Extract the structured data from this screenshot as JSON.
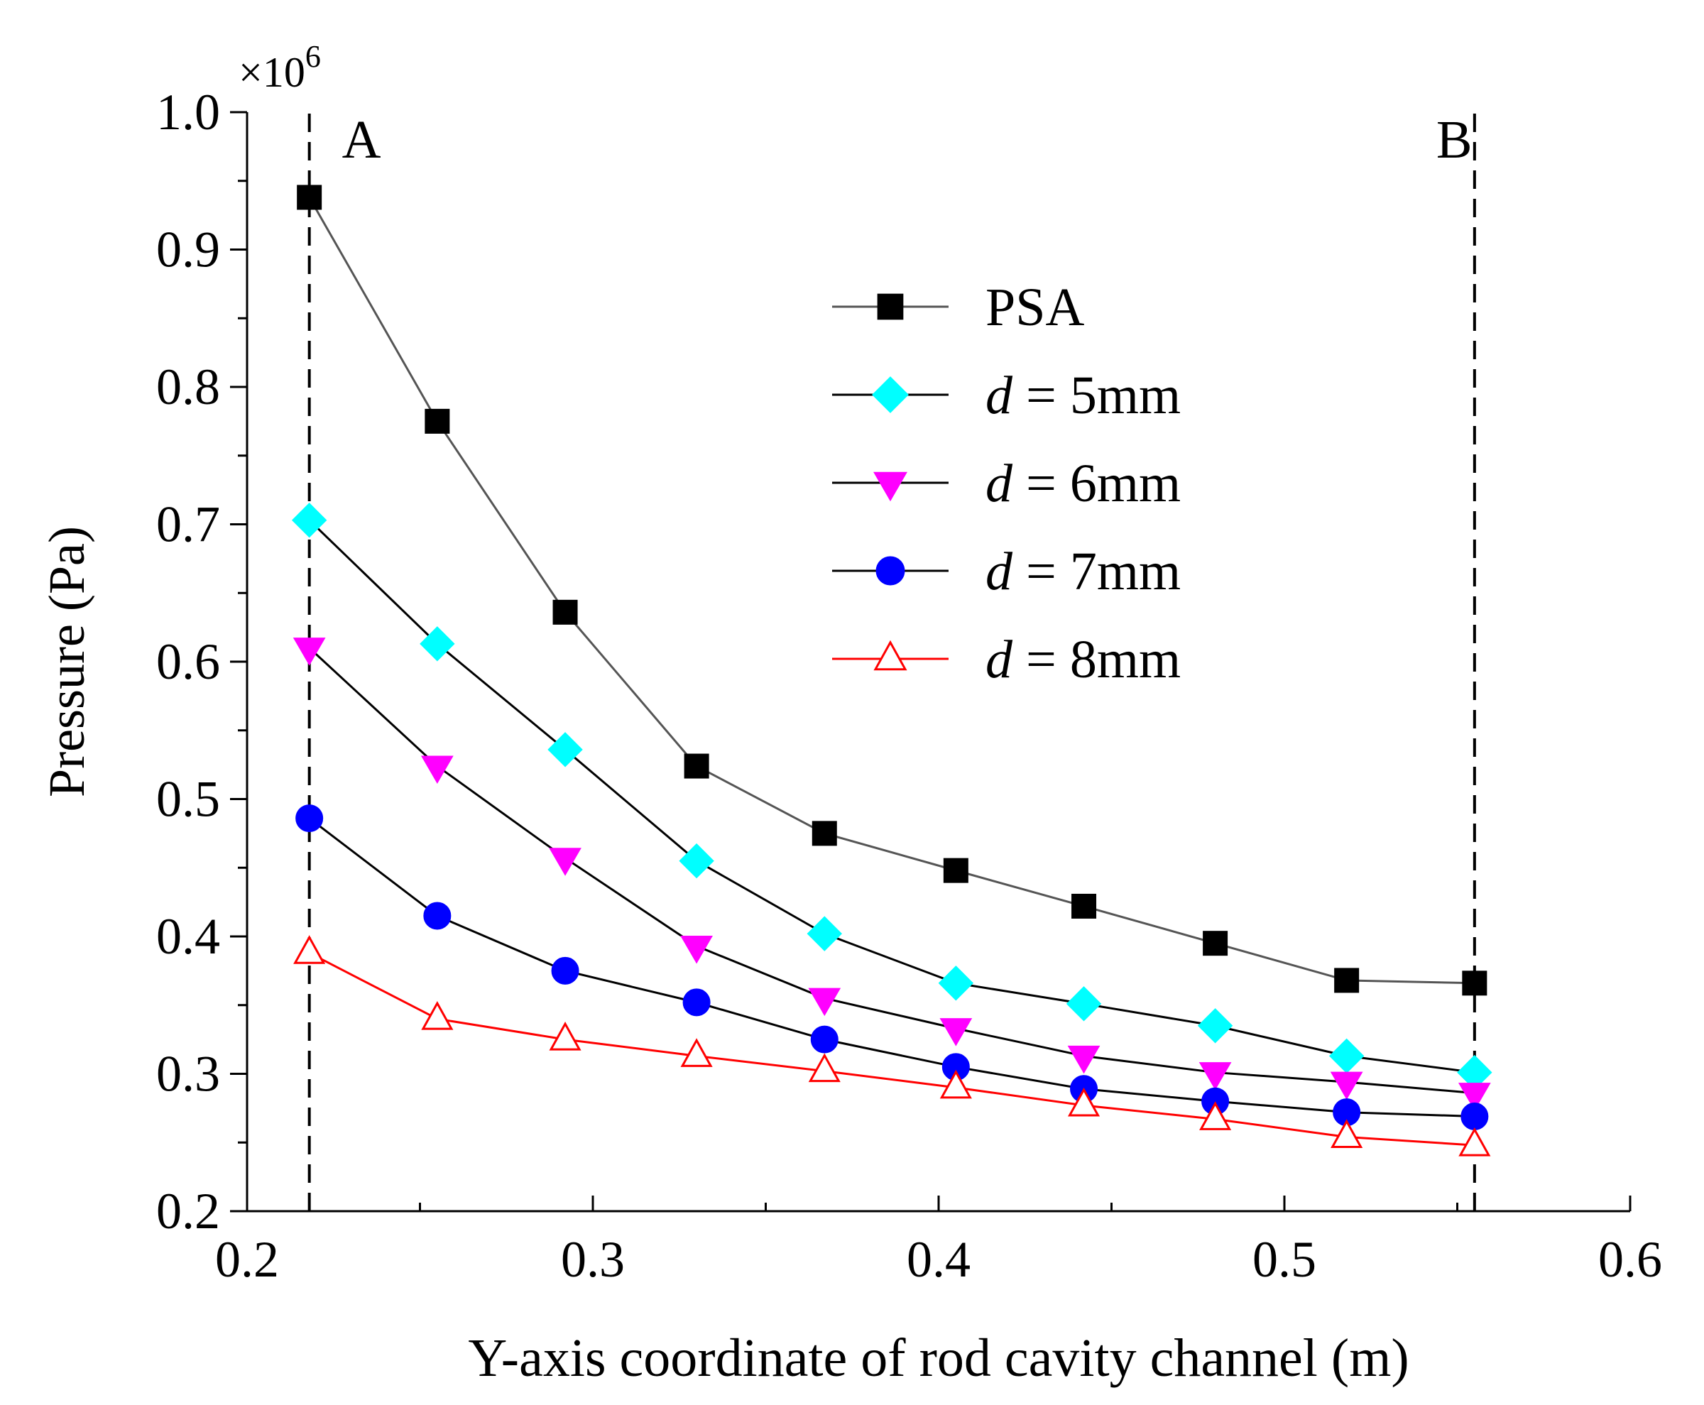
{
  "chart_data": {
    "type": "line",
    "title": "",
    "xlabel": "Y-axis coordinate of rod cavity channel (m)",
    "ylabel": "Pressure (Pa)",
    "y_multiplier": "×10",
    "y_multiplier_exp": "6",
    "xlim": [
      0.2,
      0.6
    ],
    "ylim": [
      0.2,
      1.0
    ],
    "xticks": [
      0.2,
      0.3,
      0.4,
      0.5,
      0.6
    ],
    "xtick_labels": [
      "0.2",
      "0.3",
      "0.4",
      "0.5",
      "0.6"
    ],
    "yticks": [
      0.2,
      0.3,
      0.4,
      0.5,
      0.6,
      0.7,
      0.8,
      0.9,
      1.0
    ],
    "ytick_labels": [
      "0.2",
      "0.3",
      "0.4",
      "0.5",
      "0.6",
      "0.7",
      "0.8",
      "0.9",
      "1.0"
    ],
    "grid": false,
    "legend_position": "top-right",
    "reference_lines": [
      {
        "label": "A",
        "x": 0.218
      },
      {
        "label": "B",
        "x": 0.555
      }
    ],
    "x": [
      0.218,
      0.255,
      0.292,
      0.33,
      0.367,
      0.405,
      0.442,
      0.48,
      0.518,
      0.555
    ],
    "series": [
      {
        "name": "PSA",
        "prefix": "",
        "var": "",
        "suffix": "PSA",
        "marker": "square",
        "filled": true,
        "marker_color": "#000000",
        "line_color": "#555555",
        "values": [
          0.938,
          0.775,
          0.636,
          0.524,
          0.475,
          0.448,
          0.422,
          0.395,
          0.368,
          0.366
        ]
      },
      {
        "name": "d = 5mm",
        "prefix": "",
        "var": "d",
        "suffix": " = 5mm",
        "marker": "diamond",
        "filled": true,
        "marker_color": "#00FFFF",
        "line_color": "#000000",
        "values": [
          0.703,
          0.613,
          0.536,
          0.455,
          0.402,
          0.366,
          0.351,
          0.335,
          0.313,
          0.301
        ]
      },
      {
        "name": "d = 6mm",
        "prefix": "",
        "var": "d",
        "suffix": " = 6mm",
        "marker": "triangle-down",
        "filled": true,
        "marker_color": "#FF00FF",
        "line_color": "#000000",
        "values": [
          0.61,
          0.524,
          0.457,
          0.393,
          0.355,
          0.333,
          0.313,
          0.301,
          0.294,
          0.286
        ]
      },
      {
        "name": "d = 7mm",
        "prefix": "",
        "var": "d",
        "suffix": " = 7mm",
        "marker": "circle",
        "filled": true,
        "marker_color": "#0000FF",
        "line_color": "#000000",
        "values": [
          0.486,
          0.415,
          0.375,
          0.352,
          0.325,
          0.305,
          0.289,
          0.28,
          0.272,
          0.269
        ]
      },
      {
        "name": "d = 8mm",
        "prefix": "",
        "var": "d",
        "suffix": " = 8mm",
        "marker": "triangle-up",
        "filled": false,
        "marker_color": "#FF0000",
        "line_color": "#FF0000",
        "values": [
          0.388,
          0.34,
          0.325,
          0.313,
          0.302,
          0.29,
          0.277,
          0.267,
          0.254,
          0.248
        ]
      }
    ]
  }
}
